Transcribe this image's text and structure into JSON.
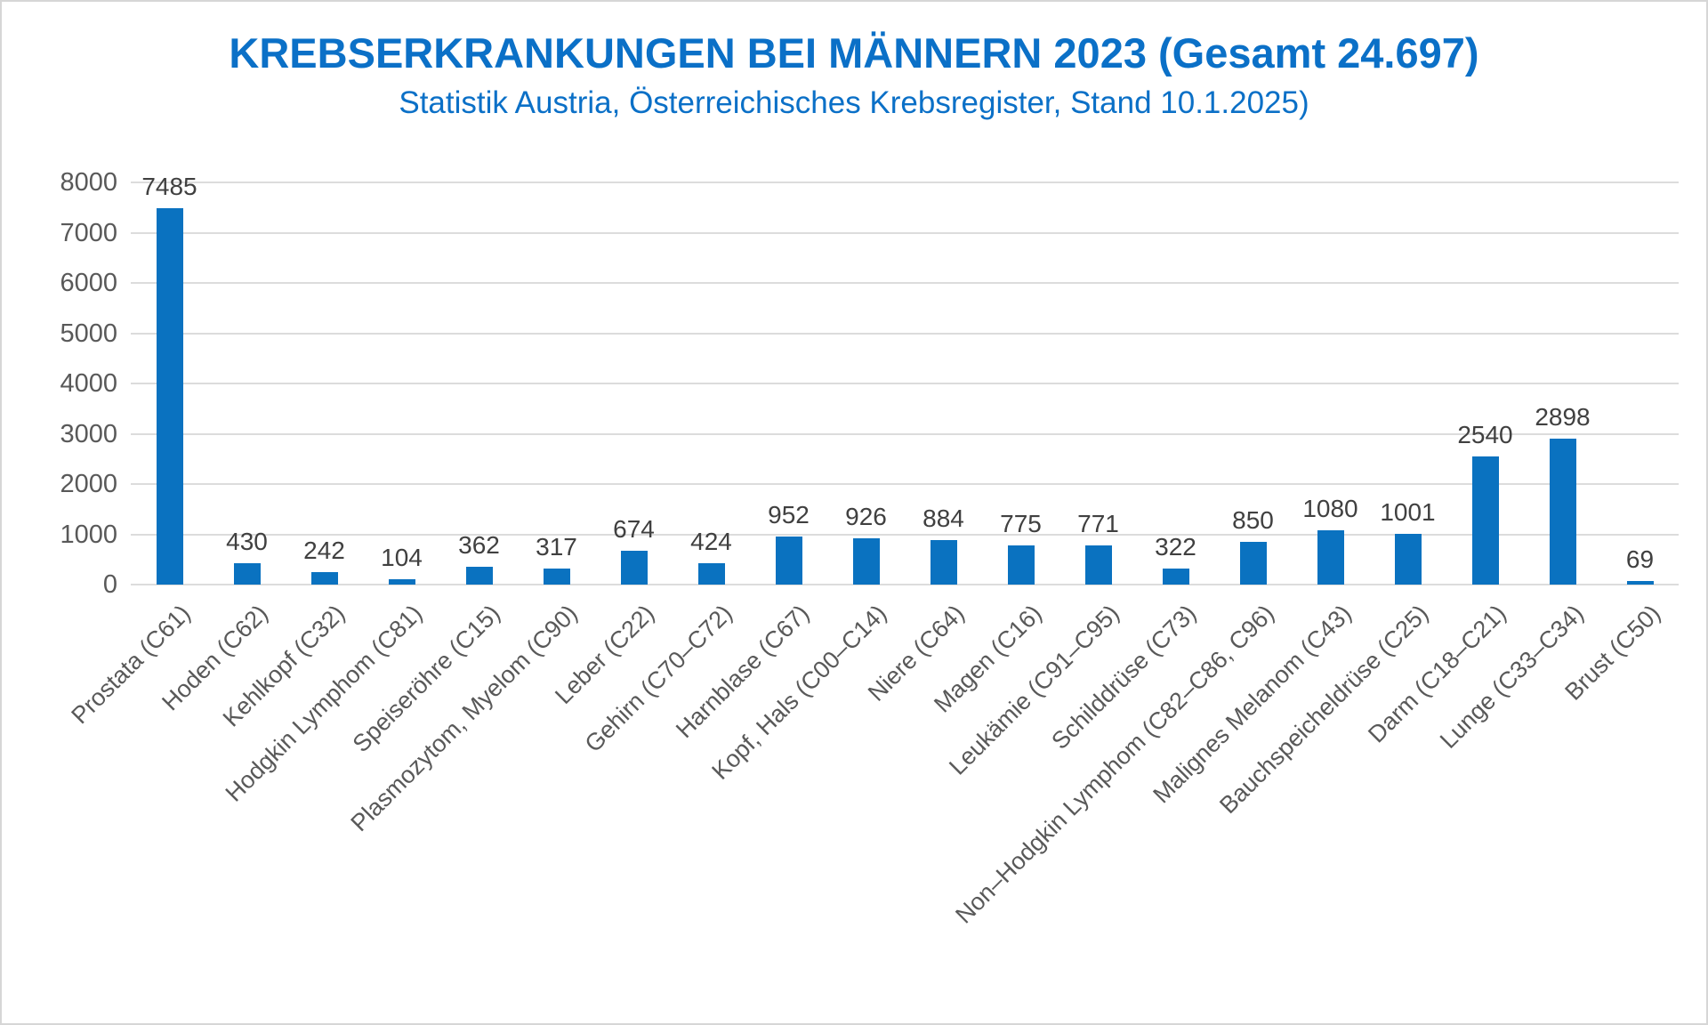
{
  "colors": {
    "bar": "#0a72c0",
    "title": "#0b70c7",
    "grid": "#dcdcdc",
    "axis_label": "#595959",
    "value_label": "#404040",
    "frame_border": "#d6d6d6"
  },
  "chart_data": {
    "type": "bar",
    "title": "KREBSERKRANKUNGEN BEI MÄNNERN 2023 (Gesamt 24.697)",
    "subtitle": "Statistik Austria, Österreichisches Krebsregister, Stand 10.1.2025)",
    "categories": [
      "Prostata (C61)",
      "Hoden (C62)",
      "Kehlkopf (C32)",
      "Hodgkin Lymphom (C81)",
      "Speiseröhre (C15)",
      "Plasmozytom, Myelom (C90)",
      "Leber (C22)",
      "Gehirn (C70–C72)",
      "Harnblase (C67)",
      "Kopf, Hals (C00–C14)",
      "Niere (C64)",
      "Magen (C16)",
      "Leukämie (C91–C95)",
      "Schilddrüse (C73)",
      "Non–Hodgkin Lymphom (C82–C86, C96)",
      "Malignes Melanom (C43)",
      "Bauchspeicheldrüse (C25)",
      "Darm (C18–C21)",
      "Lunge (C33–C34)",
      "Brust (C50)"
    ],
    "values": [
      7485,
      430,
      242,
      104,
      362,
      317,
      674,
      424,
      952,
      926,
      884,
      775,
      771,
      322,
      850,
      1080,
      1001,
      2540,
      2898,
      69
    ],
    "data_labels": [
      "7485",
      "430",
      "242",
      "104",
      "362",
      "317",
      "674",
      "424",
      "952",
      "926",
      "884",
      "775",
      "771",
      "322",
      "850",
      "1080",
      "1001",
      "2540",
      "2898",
      "69"
    ],
    "ylim": [
      0,
      8000
    ],
    "ytick_step": 1000,
    "yticks": [
      "0",
      "1000",
      "2000",
      "3000",
      "4000",
      "5000",
      "6000",
      "7000",
      "8000"
    ],
    "grid": true,
    "legend": false,
    "xlabel": "",
    "ylabel": ""
  }
}
